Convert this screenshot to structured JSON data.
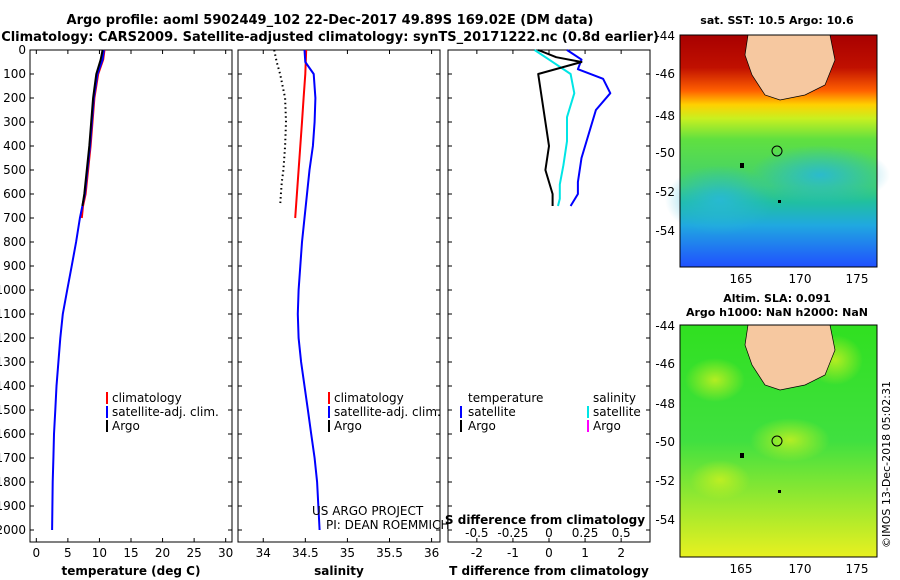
{
  "title_line1": "Argo profile: aoml 5902449_102 22-Dec-2017 49.89S 169.02E (DM data)",
  "title_line2": "Climatology: CARS2009. Satellite-adjusted climatology: synTS_20171222.nc (0.8d earlier)",
  "colors": {
    "climatology": "#ff0000",
    "satellite": "#0000ff",
    "argo": "#000000",
    "sat_salinity": "#00e5e5",
    "argo_salinity": "#ff00ff"
  },
  "chart_data": [
    {
      "type": "line",
      "name": "temperature",
      "xlabel": "temperature (deg C)",
      "xlim": [
        -1,
        31
      ],
      "ylim": [
        0,
        2050
      ],
      "xticks": [
        0,
        5,
        10,
        15,
        20,
        25,
        30
      ],
      "yticks": [
        0,
        100,
        200,
        300,
        400,
        500,
        600,
        700,
        800,
        900,
        1000,
        1100,
        1200,
        1300,
        1400,
        1500,
        1600,
        1700,
        1800,
        1900,
        2000
      ],
      "legend": [
        "climatology",
        "satellite-adj. clim.",
        "Argo"
      ],
      "series": [
        {
          "name": "climatology",
          "color": "#ff0000",
          "x": [
            10.8,
            10.6,
            9.8,
            9.2,
            8.9,
            8.6,
            8.2,
            7.8,
            7.4,
            7.2
          ],
          "y": [
            0,
            40,
            100,
            200,
            300,
            400,
            500,
            600,
            650,
            700
          ]
        },
        {
          "name": "satellite-adj. clim.",
          "color": "#0000ff",
          "x": [
            10.7,
            10.5,
            9.7,
            9.1,
            8.8,
            8.5,
            8.1,
            7.7,
            7.3,
            6.9,
            6.3,
            5.6,
            4.9,
            4.2,
            3.8,
            3.5,
            3.2,
            3.0,
            2.8,
            2.7,
            2.6,
            2.5
          ],
          "y": [
            0,
            40,
            100,
            200,
            300,
            400,
            500,
            600,
            650,
            700,
            800,
            900,
            1000,
            1100,
            1200,
            1300,
            1400,
            1500,
            1600,
            1700,
            1800,
            2000
          ]
        },
        {
          "name": "Argo",
          "color": "#000000",
          "x": [
            10.5,
            10.2,
            9.5,
            9.0,
            8.7,
            8.4,
            8.0,
            7.6,
            7.3
          ],
          "y": [
            0,
            40,
            100,
            200,
            300,
            400,
            500,
            600,
            650
          ]
        }
      ]
    },
    {
      "type": "line",
      "name": "salinity",
      "xlabel": "salinity",
      "xlim": [
        33.7,
        36.1
      ],
      "ylim": [
        0,
        2050
      ],
      "xticks": [
        34,
        34.5,
        35,
        35.5,
        36
      ],
      "legend": [
        "climatology",
        "satellite-adj. clim.",
        "Argo"
      ],
      "series": [
        {
          "name": "climatology",
          "color": "#ff0000",
          "x": [
            34.51,
            34.5,
            34.48,
            34.46,
            34.44,
            34.42,
            34.4,
            34.38
          ],
          "y": [
            0,
            100,
            200,
            300,
            400,
            500,
            600,
            700
          ]
        },
        {
          "name": "satellite-adj. clim.",
          "color": "#0000ff",
          "x": [
            34.49,
            34.5,
            34.6,
            34.62,
            34.61,
            34.59,
            34.55,
            34.52,
            34.49,
            34.46,
            34.44,
            34.42,
            34.41,
            34.42,
            34.45,
            34.49,
            34.53,
            34.57,
            34.61,
            34.64,
            34.67
          ],
          "y": [
            0,
            50,
            100,
            200,
            300,
            400,
            500,
            600,
            700,
            800,
            900,
            1000,
            1100,
            1200,
            1300,
            1400,
            1500,
            1600,
            1700,
            1800,
            2000
          ]
        },
        {
          "name": "Argo",
          "color": "#000000",
          "style": "dotted",
          "x": [
            34.13,
            34.16,
            34.2,
            34.23,
            34.26,
            34.27,
            34.26,
            34.24,
            34.22,
            34.21,
            34.2
          ],
          "y": [
            0,
            50,
            100,
            150,
            200,
            300,
            400,
            500,
            550,
            600,
            650
          ]
        }
      ]
    },
    {
      "type": "line",
      "name": "difference",
      "xlabel": "T difference from climatology",
      "xlabel2": "S difference from climatology",
      "xlim": [
        -2.8,
        2.8
      ],
      "ylim": [
        0,
        2050
      ],
      "xticks": [
        -2,
        -1,
        0,
        1,
        2
      ],
      "xticks_top_labels": [
        "-0.5",
        "-0.25",
        "0",
        "0.25",
        "0.5"
      ],
      "legend_left_title": "temperature",
      "legend_right_title": "salinity",
      "legend_left": [
        "satellite",
        "Argo"
      ],
      "legend_right": [
        "satellite",
        "Argo"
      ],
      "series": [
        {
          "name": "T satellite",
          "color": "#0000ff",
          "x": [
            0.5,
            0.9,
            0.8,
            1.5,
            1.7,
            1.3,
            1.1,
            0.9,
            0.8,
            0.8,
            0.6
          ],
          "y": [
            0,
            40,
            80,
            120,
            180,
            250,
            350,
            450,
            550,
            600,
            650
          ]
        },
        {
          "name": "S satellite",
          "color": "#00e5e5",
          "x": [
            -0.4,
            0.0,
            0.6,
            0.7,
            0.5,
            0.5,
            0.4,
            0.3,
            0.3,
            0.25
          ],
          "y": [
            0,
            40,
            100,
            180,
            280,
            380,
            480,
            560,
            620,
            650
          ]
        },
        {
          "name": "T Argo",
          "color": "#000000",
          "x": [
            -0.3,
            0.2,
            0.9,
            -0.3,
            -0.2,
            -0.1,
            0.0,
            -0.1,
            0.0,
            0.1,
            0.1
          ],
          "y": [
            0,
            30,
            50,
            100,
            200,
            300,
            400,
            500,
            550,
            600,
            650
          ]
        }
      ]
    }
  ],
  "maps": [
    {
      "title": "sat. SST: 10.5 Argo: 10.6",
      "xticks": [
        "165",
        "170",
        "175"
      ],
      "yticks": [
        "-44",
        "-46",
        "-48",
        "-50",
        "-52",
        "-54"
      ]
    },
    {
      "title1": "Altim. SLA: 0.091",
      "title2": "Argo h1000: NaN h2000: NaN",
      "xticks": [
        "165",
        "170",
        "175"
      ],
      "yticks": [
        "-44",
        "-46",
        "-48",
        "-50",
        "-52",
        "-54"
      ]
    }
  ],
  "credit1": "US ARGO PROJECT",
  "credit2": "PI: DEAN ROEMMICH",
  "watermark": "©IMOS 13-Dec-2018 05:02:31"
}
